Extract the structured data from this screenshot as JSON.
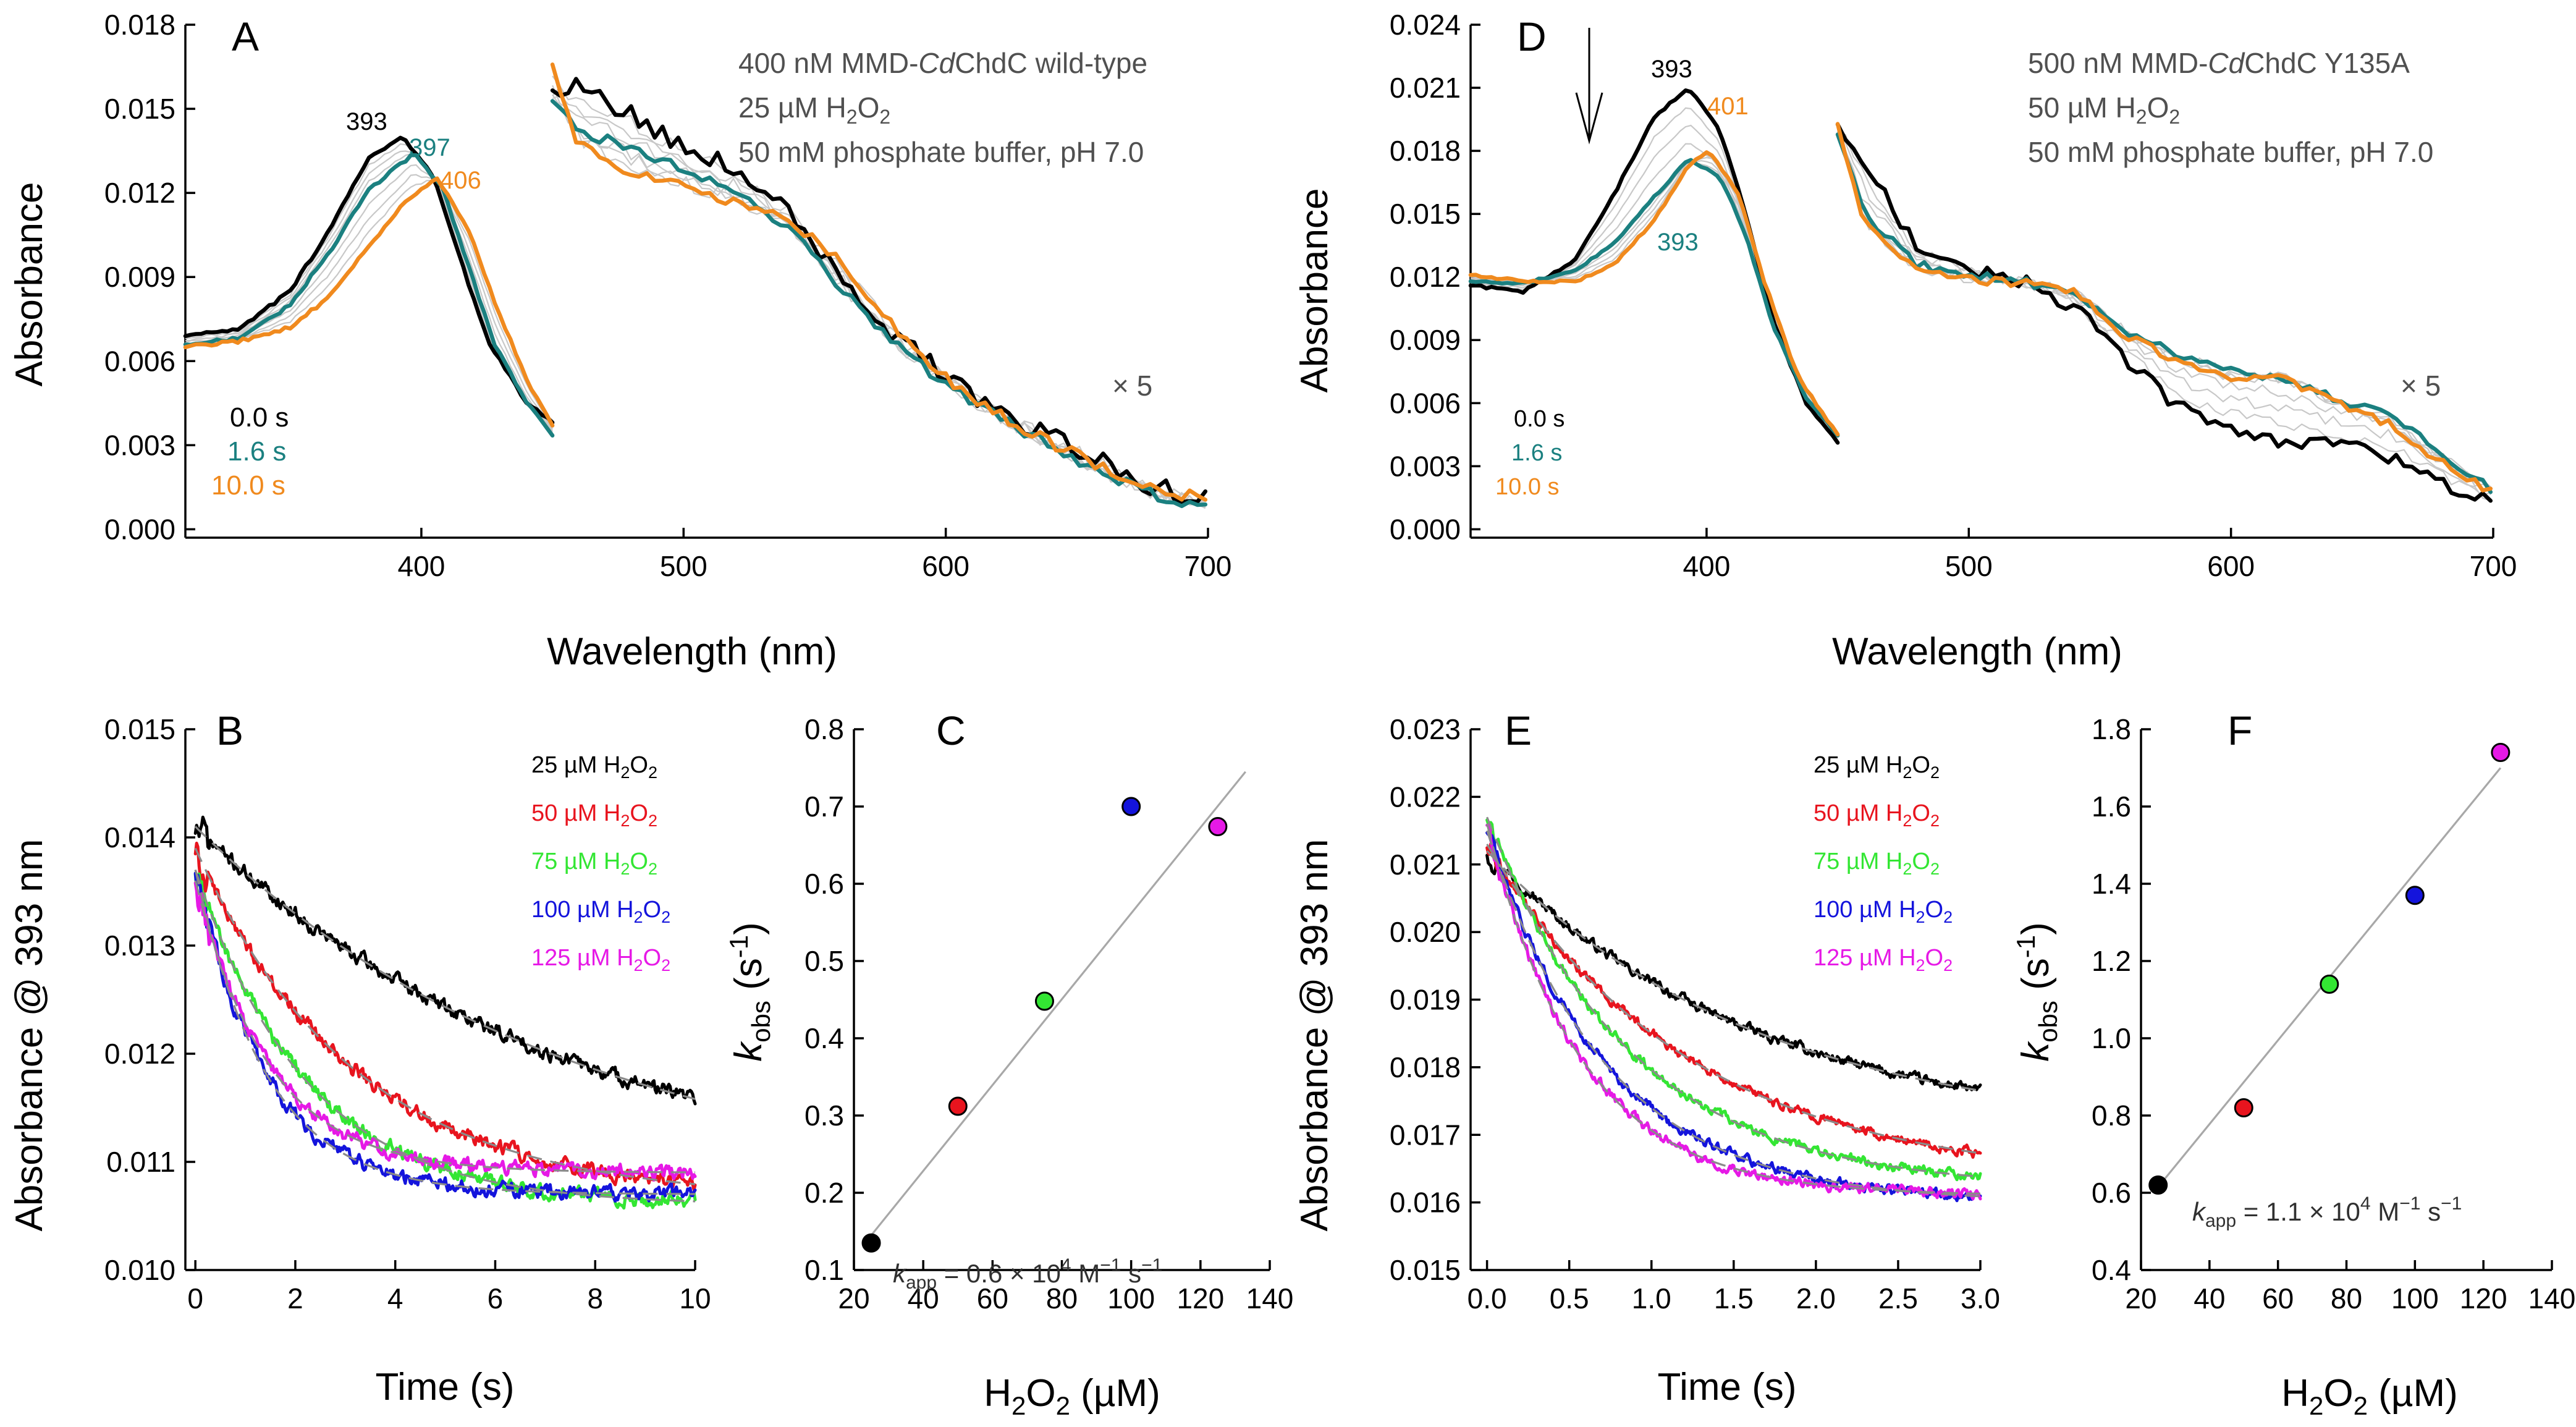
{
  "colors": {
    "black": "#000000",
    "teal": "#1b8080",
    "orange": "#f08a1e",
    "red": "#e8141e",
    "green": "#33e633",
    "blue": "#1414dc",
    "magenta": "#e619e6",
    "grey_text": "#505050",
    "intermediate": "#c8c8c8",
    "fit": "#8a8a8a"
  },
  "chart_data": [
    {
      "id": "A",
      "type": "line",
      "panel_label": "A",
      "xlabel": "Wavelength (nm)",
      "ylabel": "Absorbance",
      "xlim": [
        310,
        700
      ],
      "ylim": [
        -0.0003,
        0.018
      ],
      "xticks": [
        400,
        500,
        600,
        700
      ],
      "yticks": [
        "0.000",
        "0.003",
        "0.006",
        "0.009",
        "0.012",
        "0.015",
        "0.018"
      ],
      "info_lines": [
        "400 nM MMD-CdChdC wild-type",
        "25 µM H2O2",
        "50 mM phosphate buffer, pH 7.0"
      ],
      "scale_note": "× 5",
      "peak_labels": [
        {
          "text": "393",
          "series": "0.0 s",
          "wavelength": 393
        },
        {
          "text": "397",
          "series": "1.6 s",
          "wavelength": 397
        },
        {
          "text": "406",
          "series": "10.0 s",
          "wavelength": 406
        }
      ],
      "series": [
        {
          "name": "0.0 s",
          "color": "#000000",
          "soret": {
            "x": [
              310,
              330,
              350,
              365,
              380,
              393,
              405,
              415,
              425,
              440,
              450
            ],
            "y": [
              0.0069,
              0.0071,
              0.0085,
              0.0107,
              0.0133,
              0.014,
              0.0125,
              0.0096,
              0.0068,
              0.0045,
              0.0038
            ]
          },
          "visible_x5": {
            "x": [
              450,
              460,
              480,
              500,
              520,
              540,
              560,
              580,
              600,
              620,
              640,
              660,
              680,
              700
            ],
            "y": [
              0.0157,
              0.0159,
              0.0148,
              0.0137,
              0.0128,
              0.0115,
              0.009,
              0.007,
              0.0054,
              0.0042,
              0.0033,
              0.0024,
              0.0015,
              0.001
            ]
          }
        },
        {
          "name": "1.6 s",
          "color": "#1b8080",
          "soret": {
            "x": [
              310,
              330,
              350,
              365,
              380,
              397,
              408,
              418,
              428,
              440,
              450
            ],
            "y": [
              0.0066,
              0.0068,
              0.008,
              0.0099,
              0.0121,
              0.0134,
              0.0122,
              0.0094,
              0.0066,
              0.0045,
              0.0034
            ]
          },
          "visible_x5": {
            "x": [
              450,
              460,
              480,
              500,
              520,
              540,
              560,
              580,
              600,
              620,
              640,
              660,
              680,
              700
            ],
            "y": [
              0.0153,
              0.0142,
              0.0136,
              0.0128,
              0.012,
              0.0108,
              0.0086,
              0.0066,
              0.0052,
              0.004,
              0.003,
              0.002,
              0.0012,
              0.0008
            ]
          }
        },
        {
          "name": "10.0 s",
          "color": "#f08a1e",
          "soret": {
            "x": [
              310,
              330,
              350,
              365,
              380,
              395,
              406,
              418,
              430,
              442,
              450
            ],
            "y": [
              0.0065,
              0.0067,
              0.0072,
              0.0083,
              0.0101,
              0.0118,
              0.0125,
              0.0107,
              0.0076,
              0.005,
              0.0037
            ]
          },
          "visible_x5": {
            "x": [
              450,
              460,
              480,
              500,
              520,
              540,
              560,
              580,
              600,
              620,
              640,
              660,
              680,
              700
            ],
            "y": [
              0.0166,
              0.0137,
              0.0127,
              0.0122,
              0.0117,
              0.011,
              0.0096,
              0.0072,
              0.0054,
              0.0041,
              0.0031,
              0.0022,
              0.0014,
              0.0011
            ]
          }
        }
      ]
    },
    {
      "id": "D",
      "type": "line",
      "panel_label": "D",
      "xlabel": "Wavelength (nm)",
      "ylabel": "Absorbance",
      "xlim": [
        310,
        700
      ],
      "ylim": [
        -0.0004,
        0.024
      ],
      "xticks": [
        400,
        500,
        600,
        700
      ],
      "yticks": [
        "0.000",
        "0.003",
        "0.006",
        "0.009",
        "0.012",
        "0.015",
        "0.018",
        "0.021",
        "0.024"
      ],
      "info_lines": [
        "500 nM MMD-CdChdC Y135A",
        "50 µM H2O2",
        "50 mM phosphate buffer, pH 7.0"
      ],
      "scale_note": "× 5",
      "peak_labels": [
        {
          "text": "393",
          "series": "0.0 s",
          "wavelength": 393
        },
        {
          "text": "401",
          "series": "10.0 s",
          "wavelength": 401
        },
        {
          "text": "393",
          "series": "1.6 s",
          "wavelength": 393
        }
      ],
      "series": [
        {
          "name": "0.0 s",
          "color": "#000000",
          "soret": {
            "x": [
              310,
              330,
              350,
              365,
              380,
              393,
              405,
              415,
              425,
              438,
              450
            ],
            "y": [
              0.0116,
              0.0113,
              0.0128,
              0.016,
              0.0196,
              0.021,
              0.019,
              0.015,
              0.01,
              0.006,
              0.0041
            ]
          },
          "visible_x5": {
            "x": [
              450,
              460,
              480,
              500,
              520,
              540,
              560,
              580,
              600,
              620,
              640,
              660,
              680,
              700
            ],
            "y": [
              0.0193,
              0.0175,
              0.0134,
              0.0124,
              0.0118,
              0.0106,
              0.008,
              0.0058,
              0.0048,
              0.0042,
              0.004,
              0.0035,
              0.0022,
              0.0013
            ]
          }
        },
        {
          "name": "1.6 s",
          "color": "#1b8080",
          "soret": {
            "x": [
              310,
              330,
              350,
              365,
              380,
              393,
              405,
              415,
              425,
              438,
              450
            ],
            "y": [
              0.0118,
              0.0117,
              0.0123,
              0.0136,
              0.0158,
              0.0176,
              0.0168,
              0.014,
              0.0098,
              0.0062,
              0.0045
            ]
          },
          "visible_x5": {
            "x": [
              450,
              460,
              480,
              500,
              520,
              540,
              560,
              580,
              600,
              620,
              640,
              660,
              680,
              700
            ],
            "y": [
              0.0188,
              0.015,
              0.0126,
              0.0121,
              0.0118,
              0.0112,
              0.0094,
              0.0083,
              0.0075,
              0.0072,
              0.0062,
              0.0055,
              0.0036,
              0.0018
            ]
          }
        },
        {
          "name": "10.0 s",
          "color": "#f08a1e",
          "soret": {
            "x": [
              310,
              330,
              350,
              365,
              380,
              393,
              401,
              412,
              422,
              435,
              450
            ],
            "y": [
              0.0121,
              0.0118,
              0.0118,
              0.0126,
              0.0147,
              0.0173,
              0.018,
              0.016,
              0.0118,
              0.0072,
              0.0045
            ]
          },
          "visible_x5": {
            "x": [
              450,
              460,
              480,
              500,
              520,
              540,
              560,
              580,
              600,
              620,
              640,
              660,
              680,
              700
            ],
            "y": [
              0.0193,
              0.0145,
              0.0123,
              0.0119,
              0.0117,
              0.0114,
              0.0092,
              0.008,
              0.0072,
              0.0072,
              0.006,
              0.005,
              0.0032,
              0.0017
            ]
          }
        }
      ]
    },
    {
      "id": "B",
      "type": "line",
      "panel_label": "B",
      "xlabel": "Time (s)",
      "ylabel": "Absorbance @ 393 nm",
      "xlim": [
        -0.2,
        10
      ],
      "ylim": [
        0.01,
        0.015
      ],
      "xticks": [
        "0",
        "2",
        "4",
        "6",
        "8",
        "10"
      ],
      "yticks": [
        "0.010",
        "0.011",
        "0.012",
        "0.013",
        "0.014",
        "0.015"
      ],
      "series": [
        {
          "name": "25 µM H2O2",
          "color": "#000000",
          "A0": 0.0141,
          "Ainf": 0.0107,
          "k": 0.135,
          "tmax": 10
        },
        {
          "name": "50 µM H2O2",
          "color": "#e8141e",
          "A0": 0.0139,
          "Ainf": 0.01065,
          "k": 0.312,
          "tmax": 10
        },
        {
          "name": "75 µM H2O2",
          "color": "#33e633",
          "A0": 0.0137,
          "Ainf": 0.0106,
          "k": 0.448,
          "tmax": 10
        },
        {
          "name": "100 µM H2O2",
          "color": "#1414dc",
          "A0": 0.0137,
          "Ainf": 0.0107,
          "k": 0.7,
          "tmax": 10
        },
        {
          "name": "125 µM H2O2",
          "color": "#e619e6",
          "A0": 0.0136,
          "Ainf": 0.0109,
          "k": 0.674,
          "tmax": 10
        }
      ]
    },
    {
      "id": "E",
      "type": "line",
      "panel_label": "E",
      "xlabel": "Time (s)",
      "ylabel": "Absorbance @ 393 nm",
      "xlim": [
        -0.1,
        3
      ],
      "ylim": [
        0.015,
        0.023
      ],
      "xticks": [
        "0.0",
        "0.5",
        "1.0",
        "1.5",
        "2.0",
        "2.5",
        "3.0"
      ],
      "yticks": [
        "0.015",
        "0.016",
        "0.017",
        "0.018",
        "0.019",
        "0.020",
        "0.021",
        "0.022",
        "0.023"
      ],
      "series": [
        {
          "name": "25 µM H2O2",
          "color": "#000000",
          "A0": 0.0212,
          "Ainf": 0.017,
          "k": 0.62,
          "tmax": 3
        },
        {
          "name": "50 µM H2O2",
          "color": "#e8141e",
          "A0": 0.0213,
          "Ainf": 0.0163,
          "k": 0.82,
          "tmax": 3
        },
        {
          "name": "75 µM H2O2",
          "color": "#33e633",
          "A0": 0.0217,
          "Ainf": 0.0162,
          "k": 1.14,
          "tmax": 3
        },
        {
          "name": "100 µM H2O2",
          "color": "#1414dc",
          "A0": 0.0215,
          "Ainf": 0.016,
          "k": 1.37,
          "tmax": 3
        },
        {
          "name": "125 µM H2O2",
          "color": "#e619e6",
          "A0": 0.0216,
          "Ainf": 0.0161,
          "k": 1.74,
          "tmax": 3
        }
      ]
    },
    {
      "id": "C",
      "type": "scatter",
      "panel_label": "C",
      "xlabel": "H2O2 (µM)",
      "ylabel": "kobs (s-1)",
      "xlim": [
        20,
        140
      ],
      "ylim": [
        0.1,
        0.8
      ],
      "xticks": [
        "20",
        "40",
        "60",
        "80",
        "100",
        "120",
        "140"
      ],
      "yticks": [
        "0.1",
        "0.2",
        "0.3",
        "0.4",
        "0.5",
        "0.6",
        "0.7",
        "0.8"
      ],
      "points": [
        {
          "x": 25,
          "y": 0.135,
          "color": "#000000"
        },
        {
          "x": 50,
          "y": 0.312,
          "color": "#e8141e"
        },
        {
          "x": 75,
          "y": 0.448,
          "color": "#33e633"
        },
        {
          "x": 100,
          "y": 0.7,
          "color": "#1414dc"
        },
        {
          "x": 125,
          "y": 0.674,
          "color": "#e619e6"
        }
      ],
      "fit_line": {
        "x": [
          25,
          133
        ],
        "y": [
          0.145,
          0.745
        ]
      },
      "annotation": "kapp = 0.6 × 10^4 M^-1 s^-1"
    },
    {
      "id": "F",
      "type": "scatter",
      "panel_label": "F",
      "xlabel": "H2O2 (µM)",
      "ylabel": "kobs (s-1)",
      "xlim": [
        20,
        140
      ],
      "ylim": [
        0.4,
        1.8
      ],
      "xticks": [
        "20",
        "40",
        "60",
        "80",
        "100",
        "120",
        "140"
      ],
      "yticks": [
        "0.4",
        "0.6",
        "0.8",
        "1.0",
        "1.2",
        "1.4",
        "1.6",
        "1.8"
      ],
      "points": [
        {
          "x": 25,
          "y": 0.62,
          "color": "#000000"
        },
        {
          "x": 50,
          "y": 0.82,
          "color": "#e8141e"
        },
        {
          "x": 75,
          "y": 1.14,
          "color": "#33e633"
        },
        {
          "x": 100,
          "y": 1.37,
          "color": "#1414dc"
        },
        {
          "x": 125,
          "y": 1.74,
          "color": "#e619e6"
        }
      ],
      "fit_line": {
        "x": [
          25,
          125
        ],
        "y": [
          0.615,
          1.7
        ]
      },
      "annotation": "kapp = 1.1 × 10^4 M^-1 s^-1"
    }
  ],
  "text": {
    "A": {
      "label": "A",
      "info1": "400 nM MMD-",
      "info1_italic": "Cd",
      "info1_tail": "ChdC wild-type",
      "info2": "25 µM H",
      "info2_sub": "2",
      "info2_mid": "O",
      "info2_sub2": "2",
      "info3": "50 mM phosphate buffer, pH 7.0",
      "x5": "× 5",
      "peak1": "393",
      "peak2": "397",
      "peak3": "406",
      "leg1": "0.0 s",
      "leg2": "1.6 s",
      "leg3": "10.0 s",
      "xlabel": "Wavelength (nm)",
      "ylabel": "Absorbance"
    },
    "D": {
      "label": "D",
      "info1": "500 nM MMD-",
      "info1_italic": "Cd",
      "info1_tail": "ChdC Y135A",
      "info2": "50 µM H",
      "info2_sub": "2",
      "info2_mid": "O",
      "info2_sub2": "2",
      "info3": "50 mM phosphate buffer, pH 7.0",
      "x5": "× 5",
      "peak1": "393",
      "peak2": "401",
      "peak3": "393",
      "leg1": "0.0 s",
      "leg2": "1.6 s",
      "leg3": "10.0 s",
      "xlabel": "Wavelength (nm)",
      "ylabel": "Absorbance"
    },
    "B": {
      "label": "B",
      "xlabel": "Time (s)",
      "ylabel": "Absorbance @ 393 nm"
    },
    "E": {
      "label": "E",
      "xlabel": "Time (s)",
      "ylabel": "Absorbance @ 393 nm"
    },
    "legend": [
      {
        "pre": "25 µM H",
        "mid": "O",
        "sub": "2"
      },
      {
        "pre": "50 µM H",
        "mid": "O",
        "sub": "2"
      },
      {
        "pre": "75 µM H",
        "mid": "O",
        "sub": "2"
      },
      {
        "pre": "100 µM H",
        "mid": "O",
        "sub": "2"
      },
      {
        "pre": "125 µM H",
        "mid": "O",
        "sub": "2"
      }
    ],
    "C": {
      "label": "C",
      "ylabel_k": "k",
      "ylabel_sub": "obs",
      "ylabel_unit": " (s",
      "ylabel_sup": "-1",
      "ylabel_close": ")",
      "xlabel_pre": "H",
      "xlabel_sub": "2",
      "xlabel_mid": "O",
      "xlabel_sub2": "2",
      "xlabel_tail": " (µM)",
      "ann_k": "k",
      "ann_sub": "app",
      "ann_mid": " = 0.6 × 10",
      "ann_sup1": "4",
      "ann_m": " M",
      "ann_sup2": "−1",
      "ann_s": " s",
      "ann_sup3": "−1"
    },
    "F": {
      "label": "F",
      "ylabel_k": "k",
      "ylabel_sub": "obs",
      "ylabel_unit": " (s",
      "ylabel_sup": "-1",
      "ylabel_close": ")",
      "xlabel_pre": "H",
      "xlabel_sub": "2",
      "xlabel_mid": "O",
      "xlabel_sub2": "2",
      "xlabel_tail": " (µM)",
      "ann_k": "k",
      "ann_sub": "app",
      "ann_mid": " = 1.1 × 10",
      "ann_sup1": "4",
      "ann_m": " M",
      "ann_sup2": "−1",
      "ann_s": " s",
      "ann_sup3": "−1"
    }
  }
}
